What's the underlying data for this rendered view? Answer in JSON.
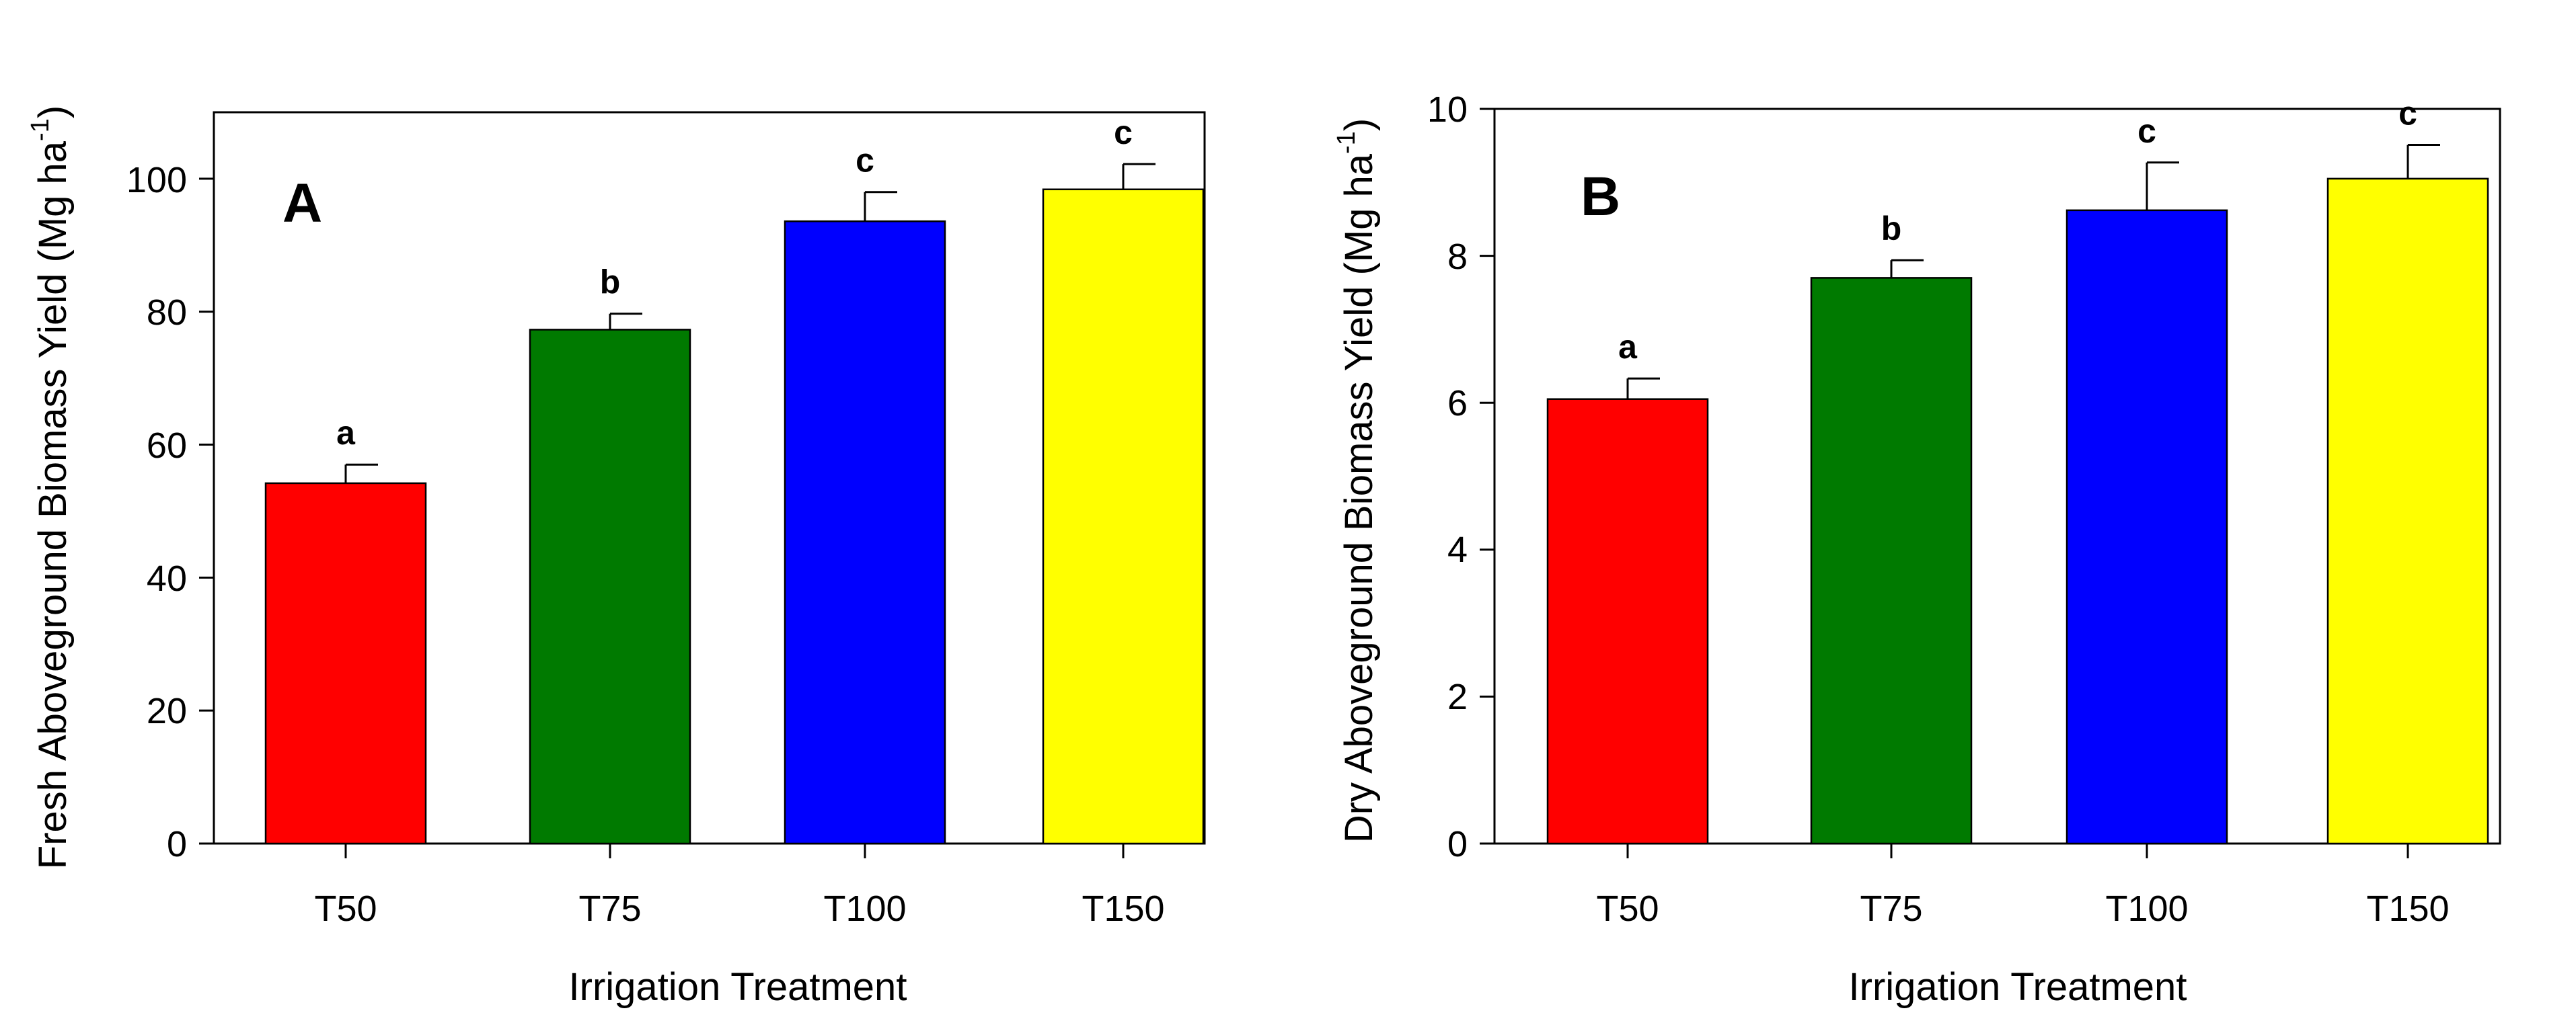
{
  "chart_data": [
    {
      "type": "bar",
      "panel": "A",
      "categories": [
        "T50",
        "T75",
        "T100",
        "T150"
      ],
      "values": [
        54.2,
        77.3,
        93.6,
        98.4
      ],
      "errors": [
        2.8,
        2.4,
        4.4,
        3.8
      ],
      "significance": [
        "a",
        "b",
        "c",
        "c"
      ],
      "colors": [
        "#ff0000",
        "#007a00",
        "#0000ff",
        "#ffff00"
      ],
      "xlabel": "Irrigation Treatment",
      "ylabel": "Fresh Aboveground Biomass Yield (Mg ha",
      "ylabel_sup": "-1",
      "ylabel_close": ")",
      "ylim": [
        0,
        110
      ],
      "yticks": [
        0,
        20,
        40,
        60,
        80,
        100
      ],
      "grid": false
    },
    {
      "type": "bar",
      "panel": "B",
      "categories": [
        "T50",
        "T75",
        "T100",
        "T150"
      ],
      "values": [
        6.05,
        7.7,
        8.62,
        9.05
      ],
      "errors": [
        0.28,
        0.24,
        0.65,
        0.46
      ],
      "significance": [
        "a",
        "b",
        "c",
        "c"
      ],
      "colors": [
        "#ff0000",
        "#007a00",
        "#0000ff",
        "#ffff00"
      ],
      "xlabel": "Irrigation Treatment",
      "ylabel": "Dry Aboveground Biomass Yield (Mg ha",
      "ylabel_sup": "-1",
      "ylabel_close": ")",
      "ylim": [
        0,
        10
      ],
      "yticks": [
        0,
        2,
        4,
        6,
        8,
        10
      ],
      "grid": false
    }
  ]
}
